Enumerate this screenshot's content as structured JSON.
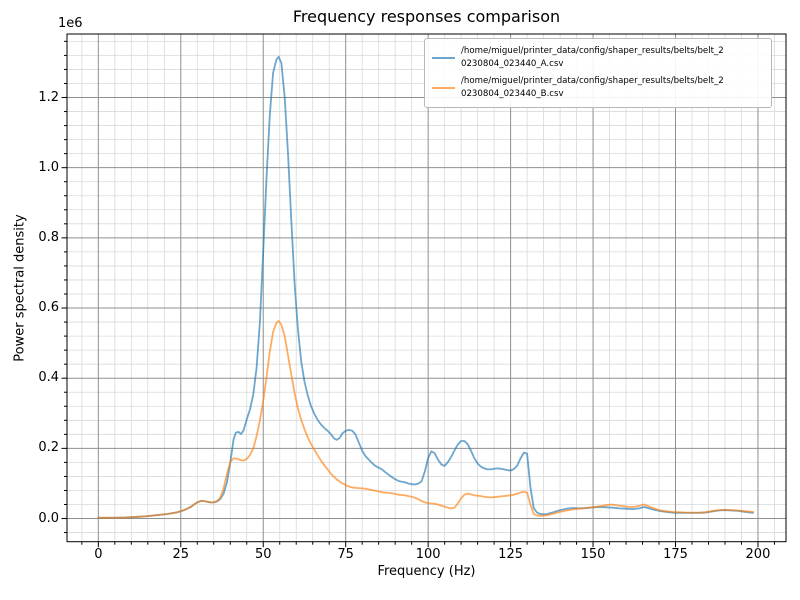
{
  "window": {
    "background": "#ffffff"
  },
  "chart_data": {
    "type": "line",
    "title": "Frequency responses comparison",
    "xlabel": "Frequency (Hz)",
    "ylabel": "Power spectral density",
    "y_offset_text": "1e6",
    "grid": true,
    "legend_position": "upper right",
    "xlim": [
      -9.5,
      208.5
    ],
    "ylim": [
      -0.066,
      1.381
    ],
    "x_ticks_major": [
      0,
      25,
      50,
      75,
      100,
      125,
      150,
      175,
      200
    ],
    "x_tick_labels": [
      "0",
      "25",
      "50",
      "75",
      "100",
      "125",
      "150",
      "175",
      "200"
    ],
    "x_minor_step": 5,
    "y_ticks_major": [
      0,
      0.2,
      0.4,
      0.6,
      0.8,
      1.0,
      1.2
    ],
    "y_tick_labels": [
      "0.0",
      "0.2",
      "0.4",
      "0.6",
      "0.8",
      "1.0",
      "1.2"
    ],
    "y_minor_step": 0.04,
    "values_unit": "1e6",
    "colors": {
      "grid_major": "#8f8f8f",
      "grid_minor": "#d9d9d9",
      "spine": "#000000"
    },
    "series": [
      {
        "label": "/home/miguel/printer_data/config/shaper_results/belts/belt_20230804_023440_A.csv",
        "legend_line1": "/home/miguel/printer_data/config/shaper_results/belts/belt_2",
        "legend_line2": "0230804_023440_A.csv",
        "color": "#1f77b4",
        "alpha": 0.65,
        "points": [
          [
            0,
            0.002
          ],
          [
            4,
            0.002
          ],
          [
            8,
            0.003
          ],
          [
            12,
            0.005
          ],
          [
            15,
            0.007
          ],
          [
            18,
            0.01
          ],
          [
            21,
            0.013
          ],
          [
            24,
            0.018
          ],
          [
            26,
            0.024
          ],
          [
            28,
            0.033
          ],
          [
            29,
            0.04
          ],
          [
            30,
            0.046
          ],
          [
            31,
            0.05
          ],
          [
            32,
            0.05
          ],
          [
            33,
            0.048
          ],
          [
            34,
            0.046
          ],
          [
            35,
            0.046
          ],
          [
            36,
            0.049
          ],
          [
            37,
            0.056
          ],
          [
            38,
            0.072
          ],
          [
            39,
            0.104
          ],
          [
            40,
            0.16
          ],
          [
            41,
            0.226
          ],
          [
            41.7,
            0.245
          ],
          [
            42.5,
            0.247
          ],
          [
            43.3,
            0.241
          ],
          [
            44,
            0.251
          ],
          [
            45,
            0.283
          ],
          [
            46,
            0.311
          ],
          [
            47,
            0.354
          ],
          [
            48,
            0.43
          ],
          [
            49,
            0.56
          ],
          [
            50,
            0.76
          ],
          [
            51,
            0.97
          ],
          [
            52,
            1.15
          ],
          [
            53,
            1.27
          ],
          [
            54,
            1.308
          ],
          [
            54.7,
            1.316
          ],
          [
            55.5,
            1.298
          ],
          [
            56.5,
            1.2
          ],
          [
            57.5,
            1.04
          ],
          [
            58.5,
            0.85
          ],
          [
            59.5,
            0.67
          ],
          [
            60.5,
            0.54
          ],
          [
            61.5,
            0.448
          ],
          [
            62.5,
            0.39
          ],
          [
            63.5,
            0.35
          ],
          [
            64.5,
            0.32
          ],
          [
            65.5,
            0.298
          ],
          [
            66.5,
            0.281
          ],
          [
            67.5,
            0.268
          ],
          [
            68.5,
            0.258
          ],
          [
            69.5,
            0.25
          ],
          [
            70.5,
            0.24
          ],
          [
            71.5,
            0.228
          ],
          [
            72.3,
            0.224
          ],
          [
            73.2,
            0.23
          ],
          [
            74,
            0.243
          ],
          [
            75,
            0.25
          ],
          [
            76,
            0.253
          ],
          [
            77,
            0.25
          ],
          [
            78,
            0.239
          ],
          [
            79,
            0.216
          ],
          [
            80,
            0.193
          ],
          [
            81,
            0.178
          ],
          [
            82,
            0.168
          ],
          [
            83,
            0.158
          ],
          [
            84,
            0.15
          ],
          [
            85,
            0.145
          ],
          [
            86,
            0.14
          ],
          [
            87,
            0.132
          ],
          [
            88,
            0.125
          ],
          [
            89,
            0.118
          ],
          [
            90,
            0.112
          ],
          [
            91,
            0.107
          ],
          [
            92,
            0.105
          ],
          [
            93,
            0.103
          ],
          [
            94,
            0.1
          ],
          [
            95,
            0.098
          ],
          [
            96,
            0.097
          ],
          [
            97,
            0.1
          ],
          [
            98,
            0.106
          ],
          [
            99,
            0.135
          ],
          [
            100,
            0.172
          ],
          [
            101,
            0.192
          ],
          [
            102,
            0.186
          ],
          [
            103,
            0.168
          ],
          [
            104,
            0.154
          ],
          [
            105,
            0.15
          ],
          [
            106,
            0.161
          ],
          [
            107,
            0.176
          ],
          [
            108,
            0.194
          ],
          [
            109,
            0.211
          ],
          [
            110,
            0.221
          ],
          [
            111,
            0.221
          ],
          [
            112,
            0.212
          ],
          [
            113,
            0.193
          ],
          [
            114,
            0.172
          ],
          [
            115,
            0.157
          ],
          [
            116,
            0.148
          ],
          [
            117,
            0.143
          ],
          [
            118,
            0.14
          ],
          [
            119,
            0.14
          ],
          [
            120,
            0.142
          ],
          [
            121,
            0.143
          ],
          [
            122,
            0.142
          ],
          [
            123,
            0.14
          ],
          [
            124,
            0.138
          ],
          [
            125,
            0.137
          ],
          [
            126,
            0.141
          ],
          [
            127,
            0.151
          ],
          [
            128,
            0.171
          ],
          [
            129,
            0.188
          ],
          [
            130,
            0.185
          ],
          [
            131,
            0.09
          ],
          [
            132,
            0.03
          ],
          [
            133,
            0.017
          ],
          [
            134,
            0.013
          ],
          [
            135,
            0.012
          ],
          [
            136,
            0.013
          ],
          [
            138,
            0.018
          ],
          [
            140,
            0.024
          ],
          [
            142,
            0.028
          ],
          [
            144,
            0.03
          ],
          [
            146,
            0.029
          ],
          [
            148,
            0.03
          ],
          [
            150,
            0.032
          ],
          [
            152,
            0.033
          ],
          [
            154,
            0.032
          ],
          [
            156,
            0.031
          ],
          [
            158,
            0.029
          ],
          [
            160,
            0.028
          ],
          [
            162,
            0.027
          ],
          [
            164,
            0.029
          ],
          [
            165.5,
            0.033
          ],
          [
            167,
            0.029
          ],
          [
            168.5,
            0.025
          ],
          [
            170,
            0.022
          ],
          [
            172,
            0.019
          ],
          [
            174,
            0.017
          ],
          [
            176,
            0.016
          ],
          [
            178,
            0.016
          ],
          [
            180,
            0.016
          ],
          [
            182,
            0.016
          ],
          [
            184,
            0.017
          ],
          [
            186,
            0.02
          ],
          [
            188,
            0.023
          ],
          [
            190,
            0.024
          ],
          [
            192,
            0.023
          ],
          [
            194,
            0.022
          ],
          [
            196,
            0.019
          ],
          [
            198.5,
            0.016
          ]
        ]
      },
      {
        "label": "/home/miguel/printer_data/config/shaper_results/belts/belt_20230804_023440_B.csv",
        "legend_line1": "/home/miguel/printer_data/config/shaper_results/belts/belt_2",
        "legend_line2": "0230804_023440_B.csv",
        "color": "#ff7f0e",
        "alpha": 0.65,
        "points": [
          [
            0,
            0.002
          ],
          [
            4,
            0.002
          ],
          [
            8,
            0.003
          ],
          [
            12,
            0.005
          ],
          [
            15,
            0.007
          ],
          [
            18,
            0.01
          ],
          [
            21,
            0.013
          ],
          [
            24,
            0.018
          ],
          [
            26,
            0.024
          ],
          [
            28,
            0.033
          ],
          [
            29,
            0.04
          ],
          [
            30,
            0.046
          ],
          [
            31,
            0.05
          ],
          [
            32,
            0.05
          ],
          [
            33,
            0.048
          ],
          [
            34,
            0.046
          ],
          [
            35,
            0.046
          ],
          [
            36,
            0.05
          ],
          [
            37,
            0.06
          ],
          [
            38,
            0.088
          ],
          [
            39,
            0.128
          ],
          [
            40,
            0.161
          ],
          [
            41,
            0.172
          ],
          [
            42,
            0.17
          ],
          [
            43,
            0.167
          ],
          [
            44,
            0.165
          ],
          [
            45,
            0.17
          ],
          [
            46,
            0.181
          ],
          [
            47,
            0.2
          ],
          [
            48,
            0.235
          ],
          [
            49,
            0.28
          ],
          [
            50,
            0.335
          ],
          [
            51,
            0.402
          ],
          [
            52,
            0.475
          ],
          [
            53,
            0.532
          ],
          [
            54,
            0.558
          ],
          [
            54.7,
            0.563
          ],
          [
            55.5,
            0.552
          ],
          [
            56.5,
            0.519
          ],
          [
            57.5,
            0.465
          ],
          [
            58.5,
            0.41
          ],
          [
            59.5,
            0.358
          ],
          [
            60.5,
            0.314
          ],
          [
            61.5,
            0.282
          ],
          [
            62.5,
            0.254
          ],
          [
            63.5,
            0.231
          ],
          [
            64.5,
            0.212
          ],
          [
            65.5,
            0.196
          ],
          [
            66.5,
            0.18
          ],
          [
            67.5,
            0.165
          ],
          [
            68.5,
            0.152
          ],
          [
            69.5,
            0.14
          ],
          [
            70.5,
            0.128
          ],
          [
            71.5,
            0.118
          ],
          [
            72.5,
            0.11
          ],
          [
            73.5,
            0.103
          ],
          [
            74.5,
            0.098
          ],
          [
            75.5,
            0.093
          ],
          [
            76.5,
            0.09
          ],
          [
            77.5,
            0.088
          ],
          [
            78.5,
            0.087
          ],
          [
            80,
            0.086
          ],
          [
            81,
            0.085
          ],
          [
            82,
            0.083
          ],
          [
            83,
            0.081
          ],
          [
            84,
            0.079
          ],
          [
            85,
            0.077
          ],
          [
            86,
            0.075
          ],
          [
            87,
            0.074
          ],
          [
            88,
            0.073
          ],
          [
            89,
            0.072
          ],
          [
            90,
            0.07
          ],
          [
            91,
            0.068
          ],
          [
            92,
            0.067
          ],
          [
            93,
            0.066
          ],
          [
            94,
            0.064
          ],
          [
            95,
            0.062
          ],
          [
            96,
            0.059
          ],
          [
            97,
            0.055
          ],
          [
            98,
            0.05
          ],
          [
            99,
            0.046
          ],
          [
            100,
            0.044
          ],
          [
            101,
            0.043
          ],
          [
            102,
            0.042
          ],
          [
            103,
            0.04
          ],
          [
            104,
            0.037
          ],
          [
            105,
            0.034
          ],
          [
            106,
            0.031
          ],
          [
            107,
            0.029
          ],
          [
            108,
            0.031
          ],
          [
            109,
            0.043
          ],
          [
            110,
            0.058
          ],
          [
            111,
            0.068
          ],
          [
            112,
            0.071
          ],
          [
            113,
            0.069
          ],
          [
            114,
            0.066
          ],
          [
            115,
            0.065
          ],
          [
            116,
            0.064
          ],
          [
            117,
            0.062
          ],
          [
            118,
            0.061
          ],
          [
            119,
            0.06
          ],
          [
            120,
            0.061
          ],
          [
            121,
            0.062
          ],
          [
            122,
            0.063
          ],
          [
            123,
            0.064
          ],
          [
            124,
            0.065
          ],
          [
            125,
            0.066
          ],
          [
            126,
            0.068
          ],
          [
            127,
            0.071
          ],
          [
            128,
            0.074
          ],
          [
            129,
            0.076
          ],
          [
            130,
            0.074
          ],
          [
            131,
            0.04
          ],
          [
            132,
            0.013
          ],
          [
            133,
            0.009
          ],
          [
            134,
            0.008
          ],
          [
            135,
            0.008
          ],
          [
            136,
            0.009
          ],
          [
            138,
            0.014
          ],
          [
            140,
            0.019
          ],
          [
            142,
            0.023
          ],
          [
            144,
            0.026
          ],
          [
            146,
            0.028
          ],
          [
            148,
            0.03
          ],
          [
            150,
            0.032
          ],
          [
            152,
            0.035
          ],
          [
            154,
            0.038
          ],
          [
            155.5,
            0.04
          ],
          [
            157,
            0.038
          ],
          [
            158.5,
            0.036
          ],
          [
            160,
            0.034
          ],
          [
            162,
            0.033
          ],
          [
            164,
            0.036
          ],
          [
            165.5,
            0.04
          ],
          [
            167,
            0.034
          ],
          [
            168.5,
            0.029
          ],
          [
            170,
            0.024
          ],
          [
            172,
            0.021
          ],
          [
            174,
            0.019
          ],
          [
            176,
            0.018
          ],
          [
            178,
            0.017
          ],
          [
            180,
            0.017
          ],
          [
            182,
            0.017
          ],
          [
            184,
            0.018
          ],
          [
            186,
            0.021
          ],
          [
            188,
            0.024
          ],
          [
            190,
            0.025
          ],
          [
            192,
            0.024
          ],
          [
            194,
            0.023
          ],
          [
            196,
            0.021
          ],
          [
            198.5,
            0.019
          ]
        ]
      }
    ]
  }
}
